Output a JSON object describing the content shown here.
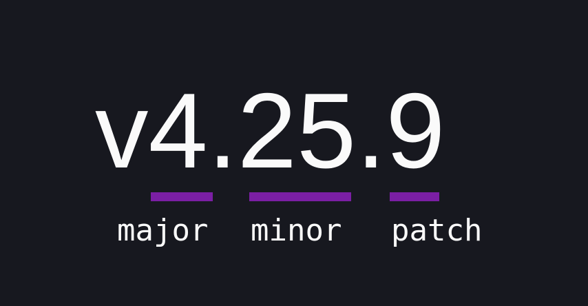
{
  "theme": {
    "background": "#17181f",
    "text": "#fafafa",
    "accent": "#7b1fa4"
  },
  "version": {
    "prefix": "v",
    "major": "4",
    "separator": ".",
    "minor": "25",
    "patch": "9"
  },
  "labels": {
    "major": "major",
    "minor": "minor",
    "patch": "patch"
  }
}
